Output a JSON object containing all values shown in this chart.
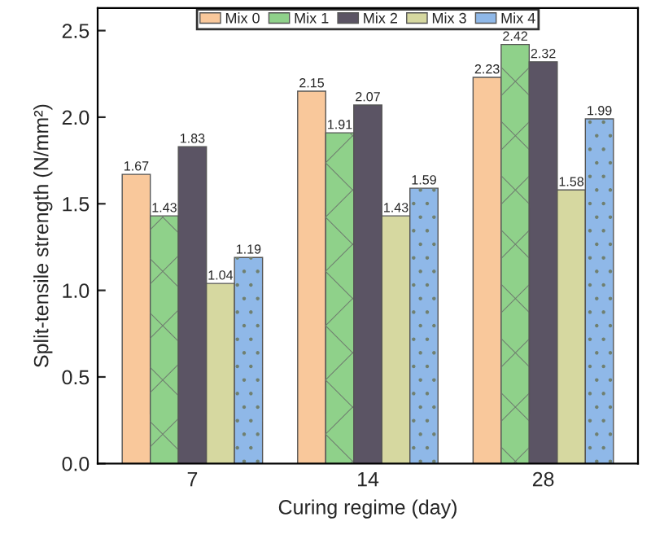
{
  "chart_data": {
    "type": "bar",
    "xlabel": "Curing regime (day)",
    "ylabel": "Split-tensile strength (N/mm²)",
    "categories": [
      "7",
      "14",
      "28"
    ],
    "series": [
      {
        "name": "Mix 0",
        "color": "#f9c89b",
        "values": [
          1.67,
          2.15,
          2.23
        ]
      },
      {
        "name": "Mix 1",
        "color": "#8fd18a",
        "values": [
          1.43,
          1.91,
          2.42
        ]
      },
      {
        "name": "Mix 2",
        "color": "#5b5464",
        "values": [
          1.83,
          2.07,
          2.32
        ]
      },
      {
        "name": "Mix 3",
        "color": "#d6d8a0",
        "values": [
          1.04,
          1.43,
          1.58
        ]
      },
      {
        "name": "Mix 4",
        "color": "#8fb8e8",
        "values": [
          1.19,
          1.59,
          1.99
        ]
      }
    ],
    "ylim": [
      0,
      2.63
    ],
    "yticks": [
      {
        "value": 0,
        "label": "0.0"
      },
      {
        "value": 0.5,
        "label": "0.5"
      },
      {
        "value": 1,
        "label": "1.0"
      },
      {
        "value": 1.5,
        "label": "1.5"
      },
      {
        "value": 2,
        "label": "2.0"
      },
      {
        "value": 2.5,
        "label": "2.5"
      }
    ],
    "data_labels": true,
    "legend": "top",
    "grid": false
  }
}
